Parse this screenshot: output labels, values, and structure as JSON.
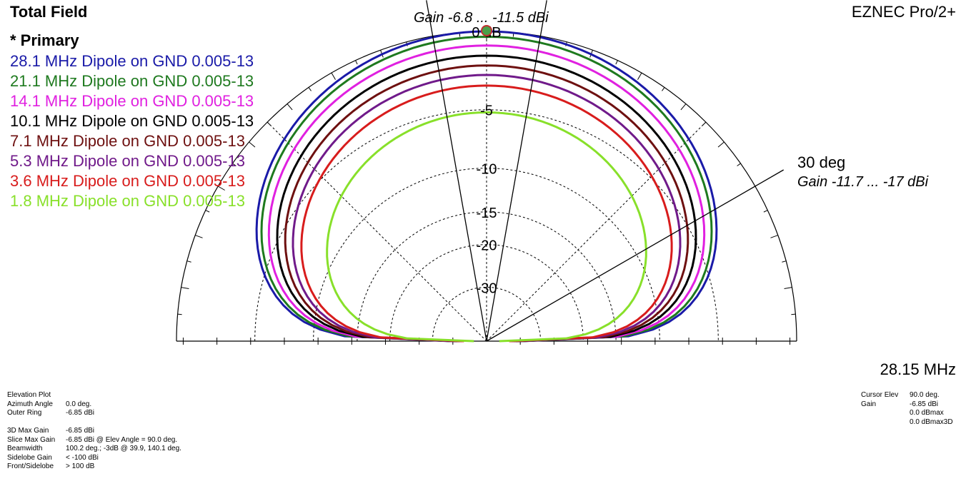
{
  "header": {
    "title": "Total Field",
    "app_name": "EZNEC Pro/2+",
    "frequency": "28.15 MHz",
    "primary_label": "* Primary"
  },
  "legend": [
    {
      "label": "28.1 MHz Dipole on GND 0.005-13",
      "color": "#1a1aa8"
    },
    {
      "label": "21.1 MHz Dipole on GND 0.005-13",
      "color": "#1e7a1e"
    },
    {
      "label": "14.1 MHz Dipole on GND 0.005-13",
      "color": "#e020e0"
    },
    {
      "label": "10.1 MHz Dipole on GND 0.005-13",
      "color": "#000000"
    },
    {
      "label": "7.1 MHz Dipole on GND 0.005-13",
      "color": "#6e1010"
    },
    {
      "label": "5.3 MHz Dipole on GND 0.005-13",
      "color": "#701a8a"
    },
    {
      "label": "3.6 MHz Dipole on GND 0.005-13",
      "color": "#d81c1c"
    },
    {
      "label": "1.8 MHz Dipole on GND 0.005-13",
      "color": "#88e02a"
    }
  ],
  "cursor_labels": {
    "top_gain": "Gain -6.8 ... -11.5 dBi",
    "angle": "30 deg",
    "angle_gain": "Gain -11.7 ... -17 dBi"
  },
  "info_left": [
    {
      "key": "Elevation Plot",
      "value": ""
    },
    {
      "key": "Azimuth Angle",
      "value": "0.0 deg."
    },
    {
      "key": "Outer Ring",
      "value": "-6.85 dBi"
    },
    {
      "key": "",
      "value": ""
    },
    {
      "key": "3D Max Gain",
      "value": "-6.85 dBi"
    },
    {
      "key": "Slice Max Gain",
      "value": "-6.85 dBi @ Elev Angle = 90.0 deg."
    },
    {
      "key": "Beamwidth",
      "value": "100.2 deg.; -3dB @ 39.9, 140.1 deg."
    },
    {
      "key": "Sidelobe Gain",
      "value": "< -100 dBi"
    },
    {
      "key": "Front/Sidelobe",
      "value": "> 100 dB"
    }
  ],
  "info_right": [
    {
      "key": "Cursor Elev",
      "value": "90.0 deg."
    },
    {
      "key": "Gain",
      "value": "-6.85 dBi"
    },
    {
      "key": "",
      "value": "0.0 dBmax"
    },
    {
      "key": "",
      "value": "0.0 dBmax3D"
    }
  ],
  "chart_data": {
    "type": "polar-elevation",
    "title": "Total Field",
    "outer_ring_dbi": -6.85,
    "ring_labels": [
      "0 dB",
      "-5",
      "-10",
      "-15",
      "-20",
      "-30"
    ],
    "ring_db": [
      0,
      -5,
      -10,
      -15,
      -20,
      -30
    ],
    "cursor_lines_deg": [
      80,
      100,
      30
    ],
    "series": [
      {
        "name": "28.1 MHz Dipole on GND 0.005-13",
        "max_db": 0.0,
        "shape": 0.46
      },
      {
        "name": "21.1 MHz Dipole on GND 0.005-13",
        "max_db": -0.3,
        "shape": 0.47
      },
      {
        "name": "14.1 MHz Dipole on GND 0.005-13",
        "max_db": -0.8,
        "shape": 0.48
      },
      {
        "name": "10.1 MHz Dipole on GND 0.005-13",
        "max_db": -1.4,
        "shape": 0.49
      },
      {
        "name": "7.1 MHz Dipole on GND 0.005-13",
        "max_db": -2.0,
        "shape": 0.5
      },
      {
        "name": "5.3 MHz Dipole on GND 0.005-13",
        "max_db": -2.6,
        "shape": 0.51
      },
      {
        "name": "3.6 MHz Dipole on GND 0.005-13",
        "max_db": -3.3,
        "shape": 0.52
      },
      {
        "name": "1.8 MHz Dipole on GND 0.005-13",
        "max_db": -5.2,
        "shape": 0.62
      }
    ]
  }
}
